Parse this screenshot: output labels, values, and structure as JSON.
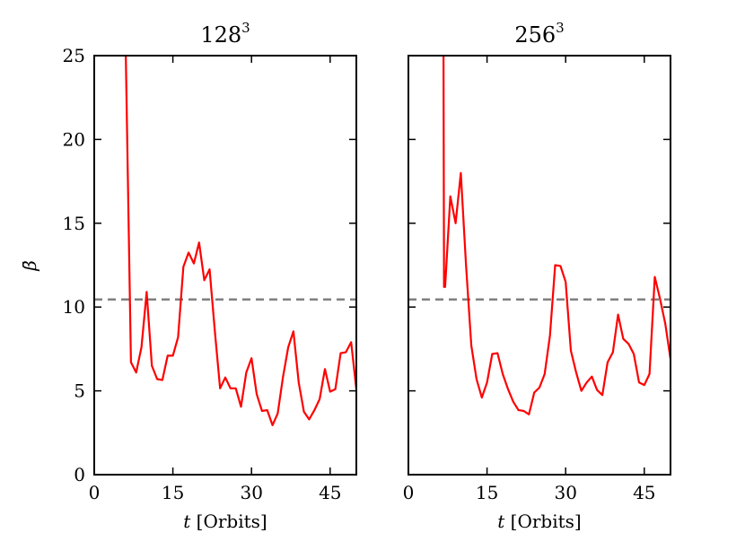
{
  "chart_data": [
    {
      "type": "line",
      "title": "128",
      "title_superscript": "3",
      "xlabel_var": "t",
      "xlabel_unit": "[Orbits]",
      "ylabel": "β̄",
      "xlim": [
        0,
        50
      ],
      "ylim": [
        0,
        25
      ],
      "xticks": [
        0,
        15,
        30,
        45
      ],
      "yticks": [
        0,
        5,
        10,
        15,
        20,
        25
      ],
      "grid": false,
      "reference_line": {
        "y": 10.45,
        "style": "dashed",
        "color": "#808080"
      },
      "series": [
        {
          "color": "#ff0000",
          "x": [
            6,
            7,
            8,
            9,
            10,
            11,
            12,
            13,
            14,
            15,
            16,
            17,
            18,
            19,
            20,
            21,
            22,
            23,
            24,
            25,
            26,
            27,
            28,
            29,
            30,
            31,
            32,
            33,
            34,
            35,
            36,
            37,
            38,
            39,
            40,
            41,
            42,
            43,
            44,
            45,
            46,
            47,
            48,
            49,
            50
          ],
          "y": [
            25.5,
            6.7,
            6.1,
            7.6,
            10.9,
            6.5,
            5.7,
            5.65,
            7.1,
            7.1,
            8.2,
            12.4,
            13.25,
            12.6,
            13.85,
            11.6,
            12.25,
            8.6,
            5.15,
            5.8,
            5.15,
            5.15,
            4.05,
            6.1,
            6.95,
            4.8,
            3.8,
            3.85,
            2.95,
            3.65,
            5.8,
            7.6,
            8.55,
            5.5,
            3.75,
            3.3,
            3.85,
            4.5,
            6.3,
            4.95,
            5.1,
            7.25,
            7.3,
            7.9,
            5.1
          ]
        }
      ]
    },
    {
      "type": "line",
      "title": "256",
      "title_superscript": "3",
      "xlabel_var": "t",
      "xlabel_unit": "[Orbits]",
      "ylabel": "",
      "xlim": [
        0,
        50
      ],
      "ylim": [
        0,
        25
      ],
      "xticks": [
        0,
        15,
        30,
        45
      ],
      "yticks": [
        0,
        5,
        10,
        15,
        20,
        25
      ],
      "grid": false,
      "reference_line": {
        "y": 10.45,
        "style": "dashed",
        "color": "#808080"
      },
      "series": [
        {
          "color": "#ff0000",
          "x": [
            6.7,
            6.8,
            7,
            8,
            9,
            10,
            11,
            12,
            13,
            14,
            15,
            16,
            17,
            18,
            19,
            20,
            21,
            22,
            23,
            24,
            25,
            26,
            27,
            28,
            29,
            30,
            31,
            32,
            33,
            34,
            35,
            36,
            37,
            38,
            39,
            40,
            41,
            42,
            43,
            44,
            45,
            46,
            47,
            48,
            49,
            50
          ],
          "y": [
            25.5,
            11.2,
            11.2,
            16.6,
            15,
            18,
            12.5,
            7.7,
            5.7,
            4.6,
            5.5,
            7.2,
            7.25,
            6,
            5.1,
            4.35,
            3.85,
            3.8,
            3.6,
            4.9,
            5.2,
            6,
            8.3,
            12.5,
            12.45,
            11.5,
            7.4,
            6.1,
            5,
            5.5,
            5.85,
            5.05,
            4.75,
            6.7,
            7.3,
            9.55,
            8.1,
            7.8,
            7.2,
            5.5,
            5.35,
            6,
            11.8,
            10.5,
            9,
            6.9
          ]
        }
      ]
    }
  ]
}
